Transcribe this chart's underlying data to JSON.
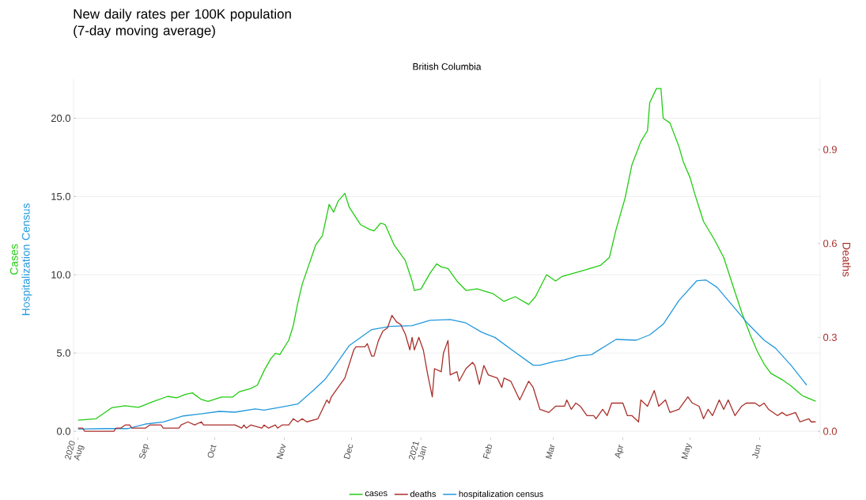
{
  "chart_data": {
    "type": "line",
    "title": "New daily rates per 100K population\n(7-day moving average)",
    "subtitle": "British Columbia",
    "ylabel": [
      "Cases",
      "Hospitalization Census"
    ],
    "y2label": "Deaths",
    "xlim": [
      "2020-07-30",
      "2021-06-28"
    ],
    "xticks": [
      {
        "value": "2020-08-01",
        "label": "2020\nAug"
      },
      {
        "value": "2020-09-01",
        "label": "Sep"
      },
      {
        "value": "2020-10-01",
        "label": "Oct"
      },
      {
        "value": "2020-11-01",
        "label": "Nov"
      },
      {
        "value": "2020-12-01",
        "label": "Dec"
      },
      {
        "value": "2021-01-01",
        "label": "2021\nJan"
      },
      {
        "value": "2021-02-01",
        "label": "Feb"
      },
      {
        "value": "2021-03-01",
        "label": "Mar"
      },
      {
        "value": "2021-04-01",
        "label": "Apr"
      },
      {
        "value": "2021-05-01",
        "label": "May"
      },
      {
        "value": "2021-06-01",
        "label": "Jun"
      }
    ],
    "ylim": [
      -0.55,
      22.5
    ],
    "yticks": [
      {
        "value": 0,
        "label": "0.0"
      },
      {
        "value": 5,
        "label": "5.0"
      },
      {
        "value": 10,
        "label": "10.0"
      },
      {
        "value": 15,
        "label": "15.0"
      },
      {
        "value": 20,
        "label": "20.0"
      }
    ],
    "y2lim": [
      -0.0275,
      1.125
    ],
    "y2ticks": [
      {
        "value": 0,
        "label": "0.0"
      },
      {
        "value": 0.3,
        "label": "0.3"
      },
      {
        "value": 0.6,
        "label": "0.6"
      },
      {
        "value": 0.9,
        "label": "0.9"
      }
    ],
    "grid": "y",
    "legend": "bottom",
    "series": [
      {
        "name": "cases",
        "color": "#22cc11",
        "x": [
          "2020-08-01",
          "2020-08-09",
          "2020-08-16",
          "2020-08-22",
          "2020-08-28",
          "2020-09-03",
          "2020-09-10",
          "2020-09-14",
          "2020-09-18",
          "2020-09-21",
          "2020-09-25",
          "2020-09-28",
          "2020-10-04",
          "2020-10-09",
          "2020-10-12",
          "2020-10-17",
          "2020-10-20",
          "2020-10-23",
          "2020-10-26",
          "2020-10-28",
          "2020-10-30",
          "2020-11-03",
          "2020-11-05",
          "2020-11-07",
          "2020-11-09",
          "2020-11-15",
          "2020-11-18",
          "2020-11-21",
          "2020-11-23",
          "2020-11-25",
          "2020-11-28",
          "2020-11-30",
          "2020-12-05",
          "2020-12-09",
          "2020-12-11",
          "2020-12-14",
          "2020-12-16",
          "2020-12-20",
          "2020-12-25",
          "2020-12-28",
          "2020-12-29",
          "2021-01-01",
          "2021-01-05",
          "2021-01-08",
          "2021-01-10",
          "2021-01-13",
          "2021-01-17",
          "2021-01-21",
          "2021-01-26",
          "2021-02-02",
          "2021-02-07",
          "2021-02-12",
          "2021-02-18",
          "2021-02-21",
          "2021-02-26",
          "2021-03-02",
          "2021-03-05",
          "2021-03-10",
          "2021-03-15",
          "2021-03-22",
          "2021-03-26",
          "2021-03-29",
          "2021-04-02",
          "2021-04-05",
          "2021-04-09",
          "2021-04-12",
          "2021-04-13",
          "2021-04-16",
          "2021-04-18",
          "2021-04-19",
          "2021-04-22",
          "2021-04-26",
          "2021-04-28",
          "2021-05-01",
          "2021-05-03",
          "2021-05-07",
          "2021-05-12",
          "2021-05-16",
          "2021-05-21",
          "2021-05-24",
          "2021-05-28",
          "2021-05-31",
          "2021-06-03",
          "2021-06-06",
          "2021-06-11",
          "2021-06-15",
          "2021-06-20",
          "2021-06-26"
        ],
        "values": [
          0.71,
          0.8,
          1.5,
          1.63,
          1.53,
          1.87,
          2.23,
          2.14,
          2.36,
          2.45,
          2.03,
          1.91,
          2.19,
          2.19,
          2.53,
          2.73,
          2.95,
          3.88,
          4.64,
          4.98,
          4.9,
          5.82,
          6.75,
          8.19,
          9.4,
          11.9,
          12.5,
          14.5,
          14.0,
          14.7,
          15.2,
          14.3,
          13.2,
          12.9,
          12.8,
          13.3,
          13.2,
          11.9,
          10.9,
          9.6,
          9.0,
          9.1,
          10.1,
          10.7,
          10.5,
          10.4,
          9.6,
          9.0,
          9.1,
          8.8,
          8.3,
          8.6,
          8.1,
          8.6,
          10.0,
          9.6,
          9.9,
          10.1,
          10.3,
          10.6,
          11.1,
          12.9,
          14.9,
          17.0,
          18.5,
          19.2,
          21.0,
          21.9,
          21.9,
          20.0,
          19.7,
          18.2,
          17.2,
          16.2,
          15.2,
          13.4,
          12.2,
          11.1,
          8.9,
          7.6,
          6.1,
          5.1,
          4.3,
          3.7,
          3.3,
          2.9,
          2.28,
          1.92
        ]
      },
      {
        "name": "deaths",
        "color": "#aa2f2a",
        "axis": "y2",
        "x": [
          "2020-08-01",
          "2020-08-03",
          "2020-08-04",
          "2020-08-17",
          "2020-08-18",
          "2020-08-20",
          "2020-08-22",
          "2020-08-24",
          "2020-08-25",
          "2020-08-31",
          "2020-09-02",
          "2020-09-07",
          "2020-09-08",
          "2020-09-15",
          "2020-09-16",
          "2020-09-19",
          "2020-09-22",
          "2020-09-25",
          "2020-09-26",
          "2020-10-10",
          "2020-10-13",
          "2020-10-14",
          "2020-10-15",
          "2020-10-17",
          "2020-10-22",
          "2020-10-23",
          "2020-10-25",
          "2020-10-28",
          "2020-10-29",
          "2020-10-31",
          "2020-11-03",
          "2020-11-05",
          "2020-11-07",
          "2020-11-09",
          "2020-11-11",
          "2020-11-16",
          "2020-11-20",
          "2020-11-21",
          "2020-11-22",
          "2020-11-24",
          "2020-11-28",
          "2020-12-02",
          "2020-12-03",
          "2020-12-07",
          "2020-12-08",
          "2020-12-10",
          "2020-12-11",
          "2020-12-13",
          "2020-12-15",
          "2020-12-17",
          "2020-12-19",
          "2020-12-21",
          "2020-12-23",
          "2020-12-25",
          "2020-12-27",
          "2020-12-28",
          "2020-12-29",
          "2020-12-31",
          "2021-01-02",
          "2021-01-04",
          "2021-01-06",
          "2021-01-07",
          "2021-01-10",
          "2021-01-11",
          "2021-01-13",
          "2021-01-14",
          "2021-01-17",
          "2021-01-18",
          "2021-01-21",
          "2021-01-24",
          "2021-01-25",
          "2021-01-27",
          "2021-01-29",
          "2021-01-31",
          "2021-02-04",
          "2021-02-06",
          "2021-02-07",
          "2021-02-10",
          "2021-02-14",
          "2021-02-18",
          "2021-02-20",
          "2021-02-23",
          "2021-02-27",
          "2021-03-02",
          "2021-03-06",
          "2021-03-07",
          "2021-03-09",
          "2021-03-11",
          "2021-03-13",
          "2021-03-16",
          "2021-03-19",
          "2021-03-20",
          "2021-03-23",
          "2021-03-25",
          "2021-03-27",
          "2021-03-29",
          "2021-04-01",
          "2021-04-03",
          "2021-04-05",
          "2021-04-08",
          "2021-04-09",
          "2021-04-12",
          "2021-04-15",
          "2021-04-17",
          "2021-04-20",
          "2021-04-22",
          "2021-04-26",
          "2021-04-30",
          "2021-05-02",
          "2021-05-05",
          "2021-05-07",
          "2021-05-09",
          "2021-05-11",
          "2021-05-14",
          "2021-05-16",
          "2021-05-18",
          "2021-05-21",
          "2021-05-24",
          "2021-05-26",
          "2021-05-30",
          "2021-06-01",
          "2021-06-03",
          "2021-06-05",
          "2021-06-09",
          "2021-06-11",
          "2021-06-13",
          "2021-06-17",
          "2021-06-19",
          "2021-06-23",
          "2021-06-24",
          "2021-06-26"
        ],
        "values": [
          0.01,
          0.01,
          0.0,
          0.0,
          0.01,
          0.01,
          0.02,
          0.02,
          0.01,
          0.01,
          0.02,
          0.02,
          0.01,
          0.01,
          0.02,
          0.03,
          0.02,
          0.03,
          0.02,
          0.02,
          0.01,
          0.02,
          0.01,
          0.02,
          0.01,
          0.02,
          0.01,
          0.02,
          0.01,
          0.02,
          0.02,
          0.04,
          0.03,
          0.04,
          0.03,
          0.04,
          0.1,
          0.09,
          0.11,
          0.13,
          0.17,
          0.26,
          0.27,
          0.27,
          0.28,
          0.24,
          0.24,
          0.29,
          0.32,
          0.33,
          0.37,
          0.35,
          0.34,
          0.31,
          0.26,
          0.3,
          0.26,
          0.3,
          0.26,
          0.18,
          0.11,
          0.2,
          0.19,
          0.25,
          0.29,
          0.18,
          0.19,
          0.16,
          0.2,
          0.22,
          0.21,
          0.15,
          0.21,
          0.18,
          0.17,
          0.14,
          0.17,
          0.16,
          0.1,
          0.16,
          0.14,
          0.07,
          0.06,
          0.08,
          0.08,
          0.1,
          0.07,
          0.09,
          0.08,
          0.05,
          0.05,
          0.04,
          0.07,
          0.05,
          0.09,
          0.09,
          0.09,
          0.05,
          0.05,
          0.03,
          0.1,
          0.08,
          0.13,
          0.08,
          0.1,
          0.06,
          0.07,
          0.11,
          0.09,
          0.08,
          0.04,
          0.07,
          0.05,
          0.1,
          0.07,
          0.1,
          0.05,
          0.08,
          0.09,
          0.09,
          0.08,
          0.09,
          0.07,
          0.05,
          0.06,
          0.05,
          0.06,
          0.03,
          0.04,
          0.03,
          0.03
        ]
      },
      {
        "name": "hospitalization census",
        "color": "#2299dd",
        "x": [
          "2020-08-01",
          "2020-08-13",
          "2020-08-23",
          "2020-08-31",
          "2020-09-08",
          "2020-09-17",
          "2020-09-24",
          "2020-10-03",
          "2020-10-10",
          "2020-10-19",
          "2020-10-23",
          "2020-10-31",
          "2020-11-07",
          "2020-11-14",
          "2020-11-19",
          "2020-11-23",
          "2020-11-30",
          "2020-12-10",
          "2020-12-18",
          "2020-12-28",
          "2021-01-05",
          "2021-01-14",
          "2021-01-21",
          "2021-01-28",
          "2021-02-03",
          "2021-02-11",
          "2021-02-20",
          "2021-02-23",
          "2021-03-02",
          "2021-03-06",
          "2021-03-12",
          "2021-03-18",
          "2021-03-29",
          "2021-04-07",
          "2021-04-13",
          "2021-04-19",
          "2021-04-26",
          "2021-05-04",
          "2021-05-08",
          "2021-05-13",
          "2021-05-21",
          "2021-05-27",
          "2021-06-03",
          "2021-06-08",
          "2021-06-15",
          "2021-06-22"
        ],
        "values": [
          0.14,
          0.17,
          0.17,
          0.46,
          0.59,
          0.98,
          1.1,
          1.27,
          1.22,
          1.43,
          1.35,
          1.55,
          1.74,
          2.62,
          3.29,
          4.05,
          5.48,
          6.5,
          6.7,
          6.75,
          7.09,
          7.14,
          6.92,
          6.33,
          5.99,
          5.15,
          4.22,
          4.22,
          4.47,
          4.56,
          4.81,
          4.89,
          5.87,
          5.82,
          6.16,
          6.84,
          8.35,
          9.62,
          9.67,
          9.2,
          7.85,
          6.84,
          5.82,
          5.32,
          4.22,
          2.95
        ]
      }
    ]
  }
}
